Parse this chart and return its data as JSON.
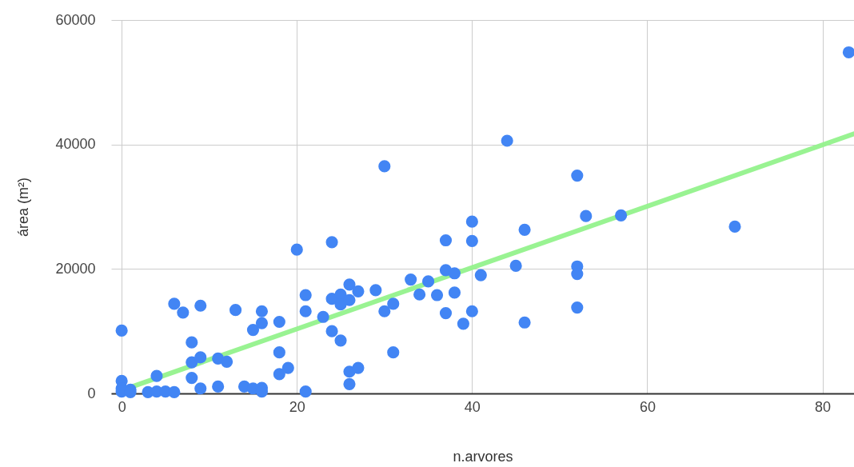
{
  "chart_data": {
    "type": "scatter",
    "xlabel": "n.arvores",
    "ylabel": "área (m²)",
    "xlim": [
      -1.2,
      83.6
    ],
    "ylim": [
      0,
      60000
    ],
    "xticks": [
      0,
      20,
      40,
      60,
      80
    ],
    "yticks": [
      0,
      20000,
      40000,
      60000
    ],
    "grid": true,
    "series": [
      {
        "color": "#4285f4",
        "marker": "circle",
        "x": [
          0,
          0,
          0,
          0,
          1,
          1,
          3,
          4,
          4,
          5,
          6,
          6,
          7,
          8,
          8,
          8,
          9,
          9,
          9,
          11,
          11,
          12,
          13,
          14,
          15,
          15,
          16,
          16,
          16,
          16,
          18,
          18,
          18,
          19,
          20,
          21,
          21,
          21,
          23,
          24,
          24,
          24,
          25,
          25,
          25,
          26,
          26,
          26,
          26,
          27,
          27,
          29,
          30,
          30,
          31,
          31,
          33,
          34,
          35,
          36,
          37,
          37,
          37,
          38,
          38,
          39,
          40,
          40,
          40,
          41,
          44,
          45,
          46,
          46,
          52,
          52,
          52,
          52,
          53,
          57,
          70,
          83
        ],
        "values": [
          10100,
          2000,
          800,
          300,
          600,
          200,
          200,
          2800,
          300,
          300,
          200,
          14400,
          13000,
          8200,
          5000,
          2500,
          14100,
          5800,
          800,
          5600,
          1100,
          5100,
          13400,
          1100,
          10200,
          800,
          13200,
          11300,
          900,
          300,
          11500,
          6600,
          3100,
          4100,
          23100,
          15800,
          13200,
          300,
          12300,
          24300,
          15200,
          10000,
          15900,
          14300,
          8500,
          17500,
          15000,
          3500,
          1500,
          16400,
          4100,
          16600,
          36500,
          13200,
          14400,
          6600,
          18300,
          15900,
          18000,
          15800,
          24600,
          19800,
          12900,
          19300,
          16200,
          11200,
          27600,
          24500,
          13200,
          19000,
          40600,
          20500,
          26300,
          11400,
          35000,
          20400,
          19200,
          13800,
          28500,
          28600,
          26800,
          54800
        ]
      },
      {
        "type": "line",
        "color": "#93f28c",
        "x": [
          0,
          83.6
        ],
        "values": [
          500,
          41700
        ]
      }
    ]
  }
}
